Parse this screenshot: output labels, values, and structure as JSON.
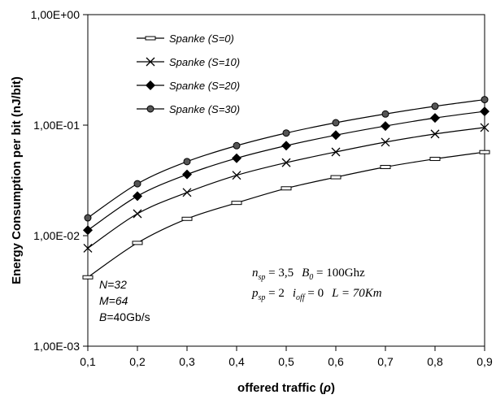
{
  "chart_data": {
    "type": "line",
    "xlabel_main": "offered traffic (",
    "xlabel_symbol": "ρ",
    "xlabel_close": ")",
    "ylabel": "Energy Consumption per bit (nJ/bit)",
    "y_scale": "log",
    "ylim": [
      0.001,
      1
    ],
    "xlim": [
      0.1,
      0.9
    ],
    "x": [
      0.1,
      0.2,
      0.3,
      0.4,
      0.5,
      0.6,
      0.7,
      0.8,
      0.9
    ],
    "x_tick_labels": [
      "0,1",
      "0,2",
      "0,3",
      "0,4",
      "0,5",
      "0,6",
      "0,7",
      "0,8",
      "0,9"
    ],
    "y_tick_values": [
      1,
      0.1,
      0.01,
      0.001
    ],
    "y_tick_labels": [
      "1,00E+00",
      "1,00E-01",
      "1,00E-02",
      "1,00E-03"
    ],
    "grid": false,
    "legend_position": "top-left",
    "series": [
      {
        "name": "Spanke (S=0)",
        "marker": "dash",
        "values": [
          0.0042,
          0.0086,
          0.0142,
          0.0198,
          0.0268,
          0.0338,
          0.0418,
          0.0495,
          0.057
        ]
      },
      {
        "name": "Spanke (S=10)",
        "marker": "x",
        "values": [
          0.0077,
          0.0158,
          0.0246,
          0.0352,
          0.0458,
          0.0572,
          0.0702,
          0.0832,
          0.0952
        ]
      },
      {
        "name": "Spanke (S=20)",
        "marker": "diamond",
        "values": [
          0.0112,
          0.0228,
          0.0358,
          0.0502,
          0.0652,
          0.0812,
          0.0982,
          0.1162,
          0.1332
        ]
      },
      {
        "name": "Spanke (S=30)",
        "marker": "circle",
        "values": [
          0.0145,
          0.0295,
          0.0468,
          0.0652,
          0.0848,
          0.1052,
          0.1262,
          0.1482,
          0.1702
        ]
      }
    ],
    "annotation_params": {
      "line1": "N=32",
      "line2": "M=64",
      "line3_b": "B",
      "line3_rest": "=40Gb/s"
    },
    "formula": {
      "nsp_var": "n",
      "nsp_sub": "sp",
      "nsp_val": " = 3,5",
      "b0_var": "B",
      "b0_sub": "0",
      "b0_val": " = 100Ghz",
      "psp_var": "p",
      "psp_sub": "sp",
      "psp_val": " = 2",
      "ioff_var": "i",
      "ioff_sub": "off",
      "ioff_val": " = 0",
      "l_text": "L = 70Km"
    }
  }
}
